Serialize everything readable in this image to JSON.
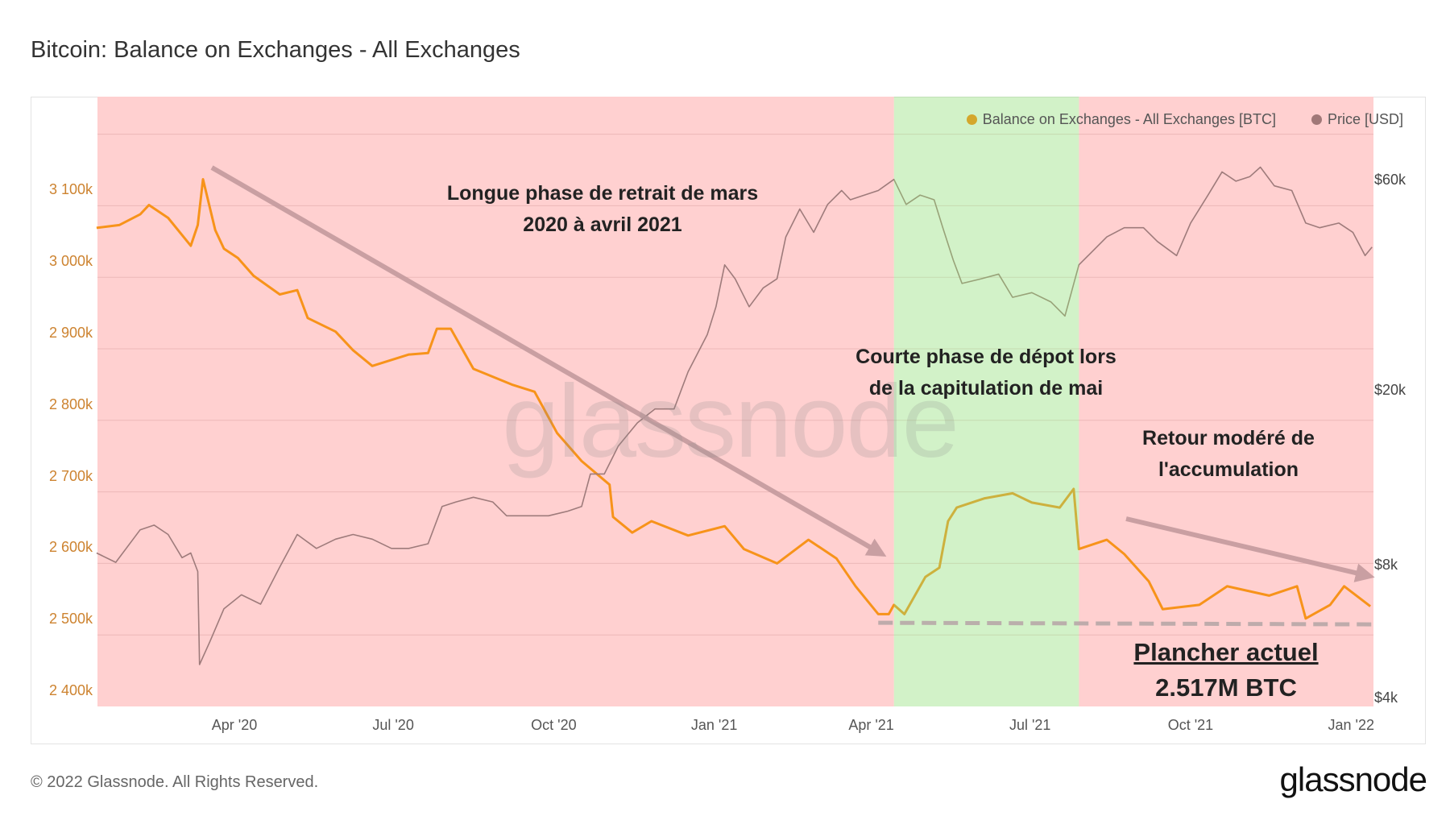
{
  "title": "Bitcoin: Balance on Exchanges - All Exchanges",
  "footer": "© 2022 Glassnode. All Rights Reserved.",
  "logo": "glassnode",
  "watermark": "glassnode",
  "legend": [
    {
      "label": "Balance on Exchanges - All Exchanges [BTC]",
      "color": "#d4a72c"
    },
    {
      "label": "Price [USD]",
      "color": "#a07878"
    }
  ],
  "annotations": {
    "withdrawal": [
      "Longue phase de retrait de mars",
      "2020 à avril 2021"
    ],
    "deposit": [
      "Courte phase de dépot lors",
      "de la capitulation de mai"
    ],
    "accumulation": [
      "Retour modéré de",
      "l'accumulation"
    ],
    "floor_title": "Plancher actuel",
    "floor_value": "2.517M BTC"
  },
  "chart_data": {
    "type": "line",
    "title": "Bitcoin: Balance on Exchanges - All Exchanges",
    "x_range": [
      "2020-01-13",
      "2022-01-14"
    ],
    "x_ticks": [
      {
        "date": "2020-04-01",
        "label": "Apr '20"
      },
      {
        "date": "2020-07-01",
        "label": "Jul '20"
      },
      {
        "date": "2020-10-01",
        "label": "Oct '20"
      },
      {
        "date": "2021-01-01",
        "label": "Jan '21"
      },
      {
        "date": "2021-04-01",
        "label": "Apr '21"
      },
      {
        "date": "2021-07-01",
        "label": "Jul '21"
      },
      {
        "date": "2021-10-01",
        "label": "Oct '21"
      },
      {
        "date": "2022-01-01",
        "label": "Jan '22"
      }
    ],
    "y_left": {
      "unit": "k BTC",
      "range": [
        2400,
        3200
      ],
      "ticks": [
        {
          "value": 2400,
          "label": "2 400k"
        },
        {
          "value": 2500,
          "label": "2 500k"
        },
        {
          "value": 2600,
          "label": "2 600k"
        },
        {
          "value": 2700,
          "label": "2 700k"
        },
        {
          "value": 2800,
          "label": "2 800k"
        },
        {
          "value": 2900,
          "label": "2 900k"
        },
        {
          "value": 3000,
          "label": "3 000k"
        },
        {
          "value": 3100,
          "label": "3 100k"
        }
      ],
      "grid": true
    },
    "y_right": {
      "scale": "log",
      "unit": "USD",
      "ticks": [
        {
          "value": 4000,
          "label": "$4k"
        },
        {
          "value": 8000,
          "label": "$8k"
        },
        {
          "value": 20000,
          "label": "$20k"
        },
        {
          "value": 60000,
          "label": "$60k"
        }
      ]
    },
    "legend_position": "top-right",
    "bands": [
      {
        "from": "2020-01-13",
        "to": "2021-04-14",
        "color": "#ffd0d0"
      },
      {
        "from": "2021-04-14",
        "to": "2021-07-29",
        "color": "#d2f2c8"
      },
      {
        "from": "2021-07-29",
        "to": "2022-01-14",
        "color": "#ffd0d0"
      }
    ],
    "reference_line": {
      "value": 2517,
      "from": "2021-04-05",
      "to": "2022-01-14"
    },
    "series": [
      {
        "name": "Balance on Exchanges - All Exchanges [BTC]",
        "axis": "left",
        "color": "#f7931a",
        "points": [
          [
            "2020-01-13",
            3069
          ],
          [
            "2020-01-26",
            3073
          ],
          [
            "2020-02-07",
            3088
          ],
          [
            "2020-02-12",
            3101
          ],
          [
            "2020-02-23",
            3083
          ],
          [
            "2020-03-07",
            3044
          ],
          [
            "2020-03-11",
            3073
          ],
          [
            "2020-03-14",
            3137
          ],
          [
            "2020-03-21",
            3066
          ],
          [
            "2020-03-26",
            3040
          ],
          [
            "2020-04-03",
            3027
          ],
          [
            "2020-04-12",
            3002
          ],
          [
            "2020-04-27",
            2976
          ],
          [
            "2020-05-07",
            2982
          ],
          [
            "2020-05-13",
            2943
          ],
          [
            "2020-05-29",
            2924
          ],
          [
            "2020-06-08",
            2898
          ],
          [
            "2020-06-19",
            2876
          ],
          [
            "2020-07-10",
            2892
          ],
          [
            "2020-07-21",
            2894
          ],
          [
            "2020-07-26",
            2928
          ],
          [
            "2020-08-03",
            2928
          ],
          [
            "2020-08-16",
            2872
          ],
          [
            "2020-09-07",
            2850
          ],
          [
            "2020-09-20",
            2840
          ],
          [
            "2020-10-03",
            2782
          ],
          [
            "2020-10-17",
            2743
          ],
          [
            "2020-11-02",
            2710
          ],
          [
            "2020-11-04",
            2665
          ],
          [
            "2020-11-15",
            2643
          ],
          [
            "2020-11-26",
            2659
          ],
          [
            "2020-12-17",
            2639
          ],
          [
            "2021-01-07",
            2652
          ],
          [
            "2021-01-18",
            2620
          ],
          [
            "2021-02-06",
            2600
          ],
          [
            "2021-02-24",
            2633
          ],
          [
            "2021-03-12",
            2607
          ],
          [
            "2021-03-23",
            2568
          ],
          [
            "2021-04-05",
            2529
          ],
          [
            "2021-04-11",
            2529
          ],
          [
            "2021-04-14",
            2542
          ],
          [
            "2021-04-20",
            2529
          ],
          [
            "2021-05-02",
            2581
          ],
          [
            "2021-05-10",
            2594
          ],
          [
            "2021-05-15",
            2659
          ],
          [
            "2021-05-20",
            2678
          ],
          [
            "2021-06-05",
            2691
          ],
          [
            "2021-06-21",
            2698
          ],
          [
            "2021-07-02",
            2685
          ],
          [
            "2021-07-18",
            2678
          ],
          [
            "2021-07-26",
            2704
          ],
          [
            "2021-07-29",
            2620
          ],
          [
            "2021-08-14",
            2633
          ],
          [
            "2021-08-24",
            2613
          ],
          [
            "2021-09-07",
            2575
          ],
          [
            "2021-09-15",
            2536
          ],
          [
            "2021-10-06",
            2542
          ],
          [
            "2021-10-22",
            2568
          ],
          [
            "2021-11-15",
            2555
          ],
          [
            "2021-12-01",
            2568
          ],
          [
            "2021-12-06",
            2523
          ],
          [
            "2021-12-20",
            2542
          ],
          [
            "2021-12-28",
            2568
          ],
          [
            "2022-01-12",
            2540
          ]
        ]
      },
      {
        "name": "Price [USD]",
        "axis": "right",
        "color": "#9e7b7b",
        "points": [
          [
            "2020-01-13",
            8581
          ],
          [
            "2020-01-24",
            8175
          ],
          [
            "2020-02-07",
            9692
          ],
          [
            "2020-02-15",
            9929
          ],
          [
            "2020-02-23",
            9457
          ],
          [
            "2020-03-02",
            8375
          ],
          [
            "2020-03-07",
            8581
          ],
          [
            "2020-03-11",
            7789
          ],
          [
            "2020-03-12",
            4788
          ],
          [
            "2020-03-18",
            5407
          ],
          [
            "2020-03-26",
            6412
          ],
          [
            "2020-04-05",
            6896
          ],
          [
            "2020-04-16",
            6569
          ],
          [
            "2020-04-27",
            7976
          ],
          [
            "2020-05-07",
            9457
          ],
          [
            "2020-05-18",
            8791
          ],
          [
            "2020-05-29",
            9228
          ],
          [
            "2020-06-08",
            9457
          ],
          [
            "2020-06-19",
            9228
          ],
          [
            "2020-06-30",
            8791
          ],
          [
            "2020-07-10",
            8791
          ],
          [
            "2020-07-21",
            9009
          ],
          [
            "2020-07-29",
            10945
          ],
          [
            "2020-08-06",
            11212
          ],
          [
            "2020-08-16",
            11488
          ],
          [
            "2020-08-27",
            11212
          ],
          [
            "2020-09-04",
            10425
          ],
          [
            "2020-09-17",
            10425
          ],
          [
            "2020-09-28",
            10425
          ],
          [
            "2020-10-09",
            10680
          ],
          [
            "2020-10-17",
            10945
          ],
          [
            "2020-10-22",
            12973
          ],
          [
            "2020-10-30",
            12973
          ],
          [
            "2020-11-07",
            15011
          ],
          [
            "2020-11-18",
            16956
          ],
          [
            "2020-11-28",
            18233
          ],
          [
            "2020-12-09",
            18233
          ],
          [
            "2020-12-17",
            22147
          ],
          [
            "2020-12-28",
            26901
          ],
          [
            "2021-01-02",
            31121
          ],
          [
            "2021-01-07",
            38733
          ],
          [
            "2021-01-13",
            36017
          ],
          [
            "2021-01-21",
            31121
          ],
          [
            "2021-01-29",
            34316
          ],
          [
            "2021-02-06",
            36017
          ],
          [
            "2021-02-11",
            44836
          ],
          [
            "2021-02-19",
            51868
          ],
          [
            "2021-02-27",
            45920
          ],
          [
            "2021-03-07",
            53140
          ],
          [
            "2021-03-15",
            57150
          ],
          [
            "2021-03-20",
            54440
          ],
          [
            "2021-03-28",
            55790
          ],
          [
            "2021-04-05",
            57150
          ],
          [
            "2021-04-14",
            60580
          ],
          [
            "2021-04-21",
            53140
          ],
          [
            "2021-04-29",
            55790
          ],
          [
            "2021-05-07",
            54440
          ],
          [
            "2021-05-12",
            47050
          ],
          [
            "2021-05-18",
            39690
          ],
          [
            "2021-05-23",
            35150
          ],
          [
            "2021-06-03",
            36017
          ],
          [
            "2021-06-13",
            36900
          ],
          [
            "2021-06-21",
            32690
          ],
          [
            "2021-07-02",
            33500
          ],
          [
            "2021-07-13",
            31900
          ],
          [
            "2021-07-21",
            29650
          ],
          [
            "2021-07-29",
            38733
          ],
          [
            "2021-08-06",
            41680
          ],
          [
            "2021-08-14",
            44836
          ],
          [
            "2021-08-24",
            47050
          ],
          [
            "2021-09-04",
            47050
          ],
          [
            "2021-09-12",
            43770
          ],
          [
            "2021-09-23",
            40660
          ],
          [
            "2021-10-01",
            48200
          ],
          [
            "2021-10-11",
            55790
          ],
          [
            "2021-10-19",
            62990
          ],
          [
            "2021-10-27",
            60010
          ],
          [
            "2021-11-04",
            61480
          ],
          [
            "2021-11-10",
            64570
          ],
          [
            "2021-11-18",
            58560
          ],
          [
            "2021-11-28",
            57150
          ],
          [
            "2021-12-06",
            48200
          ],
          [
            "2021-12-14",
            47050
          ],
          [
            "2021-12-25",
            48200
          ],
          [
            "2022-01-02",
            45920
          ],
          [
            "2022-01-09",
            40660
          ],
          [
            "2022-01-13",
            42500
          ]
        ]
      }
    ]
  }
}
